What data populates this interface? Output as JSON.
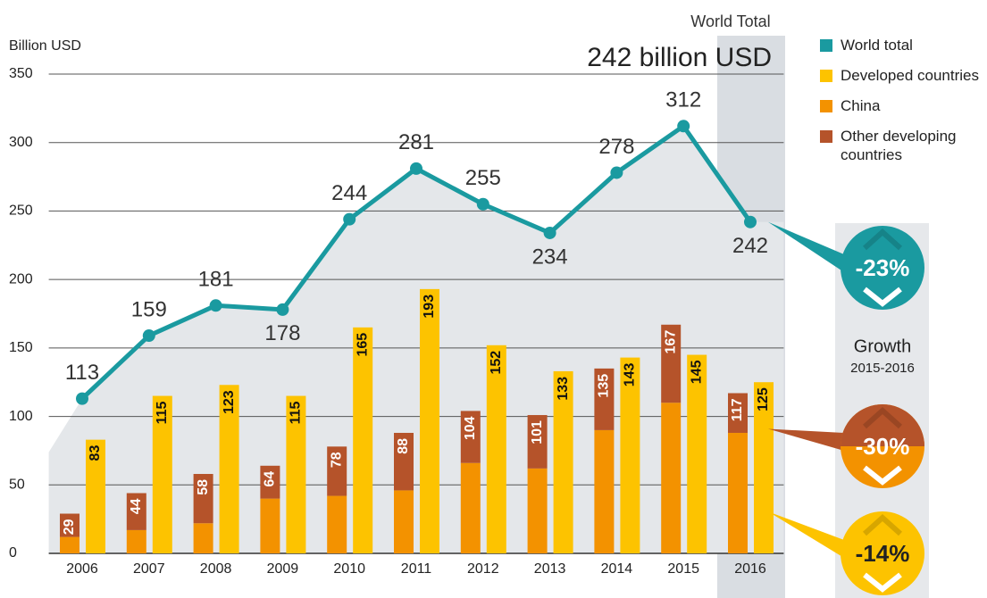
{
  "chart_data": {
    "type": "bar-line",
    "y_axis_label": "Billion USD",
    "highlight_label": "World Total",
    "highlight_value": "242 billion USD",
    "growth_title": "Growth",
    "growth_period": "2015-2016",
    "categories": [
      "2006",
      "2007",
      "2008",
      "2009",
      "2010",
      "2011",
      "2012",
      "2013",
      "2014",
      "2015",
      "2016"
    ],
    "series": [
      {
        "name": "World total",
        "color": "#1a9aa0",
        "kind": "line",
        "values": [
          113,
          159,
          181,
          178,
          244,
          281,
          255,
          234,
          278,
          312,
          242
        ],
        "growth": "-23%"
      },
      {
        "name": "Developed countries",
        "color": "#fdc300",
        "kind": "bar",
        "values": [
          83,
          115,
          123,
          115,
          165,
          193,
          152,
          133,
          143,
          145,
          125
        ],
        "growth": "-14%"
      },
      {
        "name": "China",
        "color": "#f39200",
        "kind": "stack",
        "values": [
          12,
          17,
          22,
          40,
          42,
          46,
          66,
          62,
          90,
          110,
          88
        ]
      },
      {
        "name": "Other developing countries",
        "color": "#b5532a",
        "kind": "stack",
        "values": [
          17,
          27,
          36,
          24,
          36,
          42,
          38,
          39,
          45,
          57,
          29
        ],
        "growth": "-30%"
      }
    ],
    "developing_totals": [
      "29",
      "44",
      "58",
      "64",
      "78",
      "88",
      "104",
      "101",
      "135",
      "167",
      "117"
    ],
    "ylim": [
      0,
      350
    ],
    "yticks": [
      0,
      50,
      100,
      150,
      200,
      250,
      300,
      350
    ],
    "grid": true
  }
}
